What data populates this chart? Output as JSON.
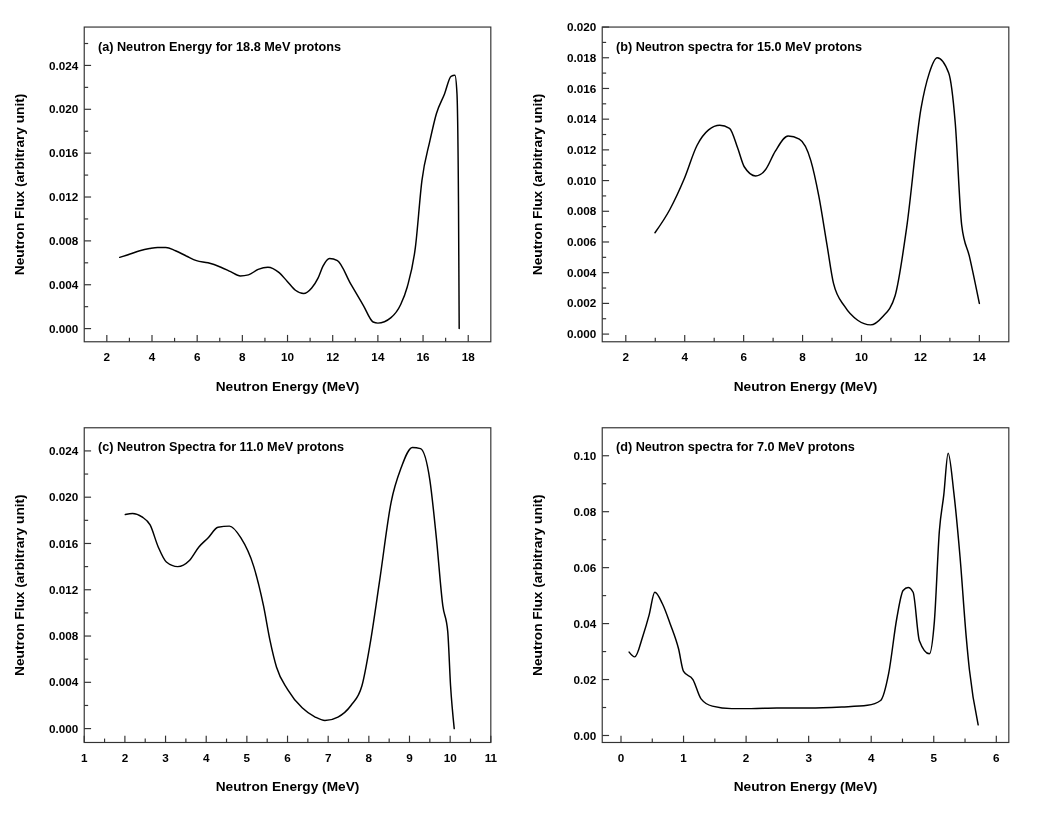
{
  "chart_data": [
    {
      "type": "line",
      "title": "(a) Neutron Energy for 18.8 MeV protons",
      "xlabel": "Neutron Energy (MeV)",
      "ylabel": "Neutron Flux (arbitrary unit)",
      "xlim": [
        1,
        19
      ],
      "ylim": [
        -0.0012,
        0.0275
      ],
      "xticks": [
        2,
        {
          "value": 3,
          "label": null
        },
        4,
        {
          "value": 5,
          "label": null
        },
        6,
        {
          "value": 7,
          "label": null
        },
        8,
        {
          "value": 9,
          "label": null
        },
        10,
        {
          "value": 11,
          "label": null
        },
        12,
        {
          "value": 13,
          "label": null
        },
        14,
        {
          "value": 15,
          "label": null
        },
        16,
        {
          "value": 17,
          "label": null
        },
        18
      ],
      "yticks": [
        {
          "value": 0,
          "label": "0.000"
        },
        {
          "value": 0.002,
          "label": null
        },
        0.004,
        {
          "value": 0.006,
          "label": null
        },
        0.008,
        {
          "value": 0.01,
          "label": null
        },
        0.012,
        {
          "value": 0.014,
          "label": null
        },
        0.016,
        {
          "value": 0.018,
          "label": null
        },
        {
          "value": 0.02,
          "label": "0.020"
        },
        {
          "value": 0.022,
          "label": null
        },
        0.024,
        {
          "value": 0.026,
          "label": null
        }
      ],
      "grid": false,
      "marker": "none",
      "line_style": "solid",
      "series": [
        {
          "color": "#000000",
          "x": [
            2.57,
            3.03,
            3.46,
            3.89,
            4.25,
            4.61,
            5.04,
            5.54,
            5.97,
            6.48,
            7.05,
            7.48,
            7.91,
            8.27,
            8.7,
            9.13,
            9.63,
            9.99,
            10.35,
            10.71,
            11.07,
            11.35,
            11.57,
            11.86,
            12.21,
            12.79,
            13.36,
            13.79,
            14.0,
            14.58,
            15.01,
            15.3,
            15.66,
            15.95,
            16.3,
            16.59,
            16.95,
            17.24,
            17.41,
            17.5,
            17.57,
            17.6
          ],
          "values": [
            0.0065,
            0.0068,
            0.0071,
            0.0073,
            0.0074,
            0.0074,
            0.0071,
            0.0066,
            0.0062,
            0.006,
            0.0056,
            0.0052,
            0.0048,
            0.0049,
            0.0054,
            0.0056,
            0.0051,
            0.0043,
            0.0035,
            0.0032,
            0.0037,
            0.0046,
            0.0057,
            0.0064,
            0.0062,
            0.0041,
            0.0021,
            0.0006,
            0.0005,
            0.001,
            0.0022,
            0.0038,
            0.0074,
            0.0135,
            0.0171,
            0.0196,
            0.0214,
            0.023,
            0.0231,
            0.0215,
            0.0112,
            0.0
          ]
        }
      ]
    },
    {
      "type": "line",
      "title": "(b) Neutron spectra for 15.0 MeV protons",
      "xlabel": "Neutron Energy (MeV)",
      "ylabel": "Neutron Flux (arbitrary unit)",
      "xlim": [
        1.2,
        15
      ],
      "ylim": [
        -0.0005,
        0.02
      ],
      "xticks": [
        2,
        {
          "value": 3,
          "label": null
        },
        4,
        {
          "value": 5,
          "label": null
        },
        6,
        {
          "value": 7,
          "label": null
        },
        8,
        {
          "value": 9,
          "label": null
        },
        10,
        {
          "value": 11,
          "label": null
        },
        12,
        {
          "value": 13,
          "label": null
        },
        14
      ],
      "yticks": [
        {
          "value": 0,
          "label": "0.000"
        },
        {
          "value": 0.001,
          "label": null
        },
        0.002,
        {
          "value": 0.003,
          "label": null
        },
        0.004,
        {
          "value": 0.005,
          "label": null
        },
        0.006,
        {
          "value": 0.007,
          "label": null
        },
        0.008,
        {
          "value": 0.009,
          "label": null
        },
        {
          "value": 0.01,
          "label": "0.010"
        },
        {
          "value": 0.011,
          "label": null
        },
        0.012,
        {
          "value": 0.013,
          "label": null
        },
        0.014,
        {
          "value": 0.015,
          "label": null
        },
        0.016,
        {
          "value": 0.017,
          "label": null
        },
        0.018,
        {
          "value": 0.019,
          "label": null
        },
        {
          "value": 0.02,
          "label": "0.020"
        }
      ],
      "grid": false,
      "marker": "none",
      "line_style": "solid",
      "series": [
        {
          "color": "#000000",
          "x": [
            2.99,
            3.49,
            3.98,
            4.42,
            4.81,
            5.19,
            5.52,
            5.8,
            6.02,
            6.41,
            6.74,
            7.07,
            7.51,
            7.89,
            8.28,
            8.55,
            8.83,
            9.05,
            9.43,
            9.87,
            10.31,
            10.7,
            11.14,
            11.53,
            12.02,
            12.3,
            12.57,
            12.96,
            13.18,
            13.4,
            13.67,
            14.0
          ],
          "values": [
            0.0066,
            0.0081,
            0.0101,
            0.0123,
            0.0133,
            0.0136,
            0.0134,
            0.0121,
            0.0109,
            0.0103,
            0.0107,
            0.0119,
            0.0129,
            0.0127,
            0.0113,
            0.009,
            0.0058,
            0.0033,
            0.0018,
            0.0009,
            0.0006,
            0.0011,
            0.0025,
            0.0069,
            0.0147,
            0.017,
            0.018,
            0.017,
            0.0138,
            0.0071,
            0.005,
            0.002
          ]
        }
      ]
    },
    {
      "type": "line",
      "title": "(c) Neutron Spectra for 11.0 MeV protons",
      "xlabel": "Neutron Energy (MeV)",
      "ylabel": "Neutron Flux (arbitrary unit)",
      "xlim": [
        1,
        11
      ],
      "ylim": [
        -0.0012,
        0.026
      ],
      "xticks": [
        1,
        {
          "value": 1.5,
          "label": null
        },
        2,
        {
          "value": 2.5,
          "label": null
        },
        3,
        {
          "value": 3.5,
          "label": null
        },
        4,
        {
          "value": 4.5,
          "label": null
        },
        5,
        {
          "value": 5.5,
          "label": null
        },
        6,
        {
          "value": 6.5,
          "label": null
        },
        7,
        {
          "value": 7.5,
          "label": null
        },
        8,
        {
          "value": 8.5,
          "label": null
        },
        9,
        {
          "value": 9.5,
          "label": null
        },
        10,
        {
          "value": 10.5,
          "label": null
        },
        11
      ],
      "yticks": [
        {
          "value": 0,
          "label": "0.000"
        },
        {
          "value": 0.002,
          "label": null
        },
        0.004,
        {
          "value": 0.006,
          "label": null
        },
        0.008,
        {
          "value": 0.01,
          "label": null
        },
        0.012,
        {
          "value": 0.014,
          "label": null
        },
        0.016,
        {
          "value": 0.018,
          "label": null
        },
        {
          "value": 0.02,
          "label": "0.020"
        },
        {
          "value": 0.022,
          "label": null
        },
        0.024
      ],
      "grid": false,
      "marker": "none",
      "line_style": "solid",
      "series": [
        {
          "color": "#000000",
          "x": [
            2.01,
            2.19,
            2.42,
            2.62,
            2.82,
            3.02,
            3.3,
            3.58,
            3.82,
            4.05,
            4.29,
            4.57,
            4.85,
            5.17,
            5.41,
            5.57,
            5.73,
            6.0,
            6.36,
            6.68,
            6.92,
            7.24,
            7.56,
            7.83,
            8.03,
            8.27,
            8.55,
            8.79,
            9.07,
            9.27,
            9.5,
            9.66,
            9.82,
            9.94,
            10.01,
            10.1
          ],
          "values": [
            0.0185,
            0.0186,
            0.0183,
            0.0176,
            0.0157,
            0.0144,
            0.014,
            0.0145,
            0.0157,
            0.0165,
            0.0174,
            0.0175,
            0.0165,
            0.014,
            0.0106,
            0.0076,
            0.0053,
            0.0034,
            0.0018,
            0.001,
            0.0007,
            0.001,
            0.002,
            0.0037,
            0.0073,
            0.0129,
            0.0196,
            0.0225,
            0.0243,
            0.0242,
            0.0215,
            0.0165,
            0.0106,
            0.0084,
            0.0037,
            0.0
          ]
        }
      ]
    },
    {
      "type": "line",
      "title": "(d) Neutron spectra for 7.0 MeV protons",
      "xlabel": "Neutron Energy (MeV)",
      "ylabel": "Neutron Flux (arbitrary unit)",
      "xlim": [
        -0.3,
        6.2
      ],
      "ylim": [
        -0.0025,
        0.11
      ],
      "xticks": [
        0,
        {
          "value": 0.5,
          "label": null
        },
        1,
        {
          "value": 1.5,
          "label": null
        },
        2,
        {
          "value": 2.5,
          "label": null
        },
        3,
        {
          "value": 3.5,
          "label": null
        },
        4,
        {
          "value": 4.5,
          "label": null
        },
        5,
        {
          "value": 5.5,
          "label": null
        },
        6
      ],
      "yticks": [
        {
          "value": 0,
          "label": "0.00"
        },
        {
          "value": 0.01,
          "label": null
        },
        0.02,
        {
          "value": 0.03,
          "label": null
        },
        0.04,
        {
          "value": 0.05,
          "label": null
        },
        0.06,
        {
          "value": 0.07,
          "label": null
        },
        0.08,
        {
          "value": 0.09,
          "label": null
        },
        {
          "value": 0.1,
          "label": "0.10"
        }
      ],
      "grid": false,
      "marker": "none",
      "line_style": "solid",
      "series": [
        {
          "color": "#000000",
          "x": [
            0.13,
            0.22,
            0.35,
            0.45,
            0.54,
            0.66,
            0.79,
            0.92,
            1.0,
            1.15,
            1.28,
            1.46,
            1.77,
            2.08,
            2.49,
            3.01,
            3.53,
            3.94,
            4.15,
            4.28,
            4.41,
            4.51,
            4.59,
            4.67,
            4.77,
            4.93,
            5.01,
            5.09,
            5.16,
            5.23,
            5.32,
            5.42,
            5.52,
            5.57,
            5.71
          ],
          "values": [
            0.0298,
            0.0281,
            0.0356,
            0.0431,
            0.0512,
            0.0472,
            0.0397,
            0.031,
            0.0229,
            0.02,
            0.0131,
            0.0105,
            0.0096,
            0.0096,
            0.0098,
            0.0098,
            0.0102,
            0.0108,
            0.0125,
            0.0223,
            0.042,
            0.0518,
            0.0529,
            0.0512,
            0.0339,
            0.0292,
            0.0408,
            0.0732,
            0.0859,
            0.1009,
            0.087,
            0.0639,
            0.035,
            0.0235,
            0.0038
          ]
        }
      ]
    }
  ]
}
